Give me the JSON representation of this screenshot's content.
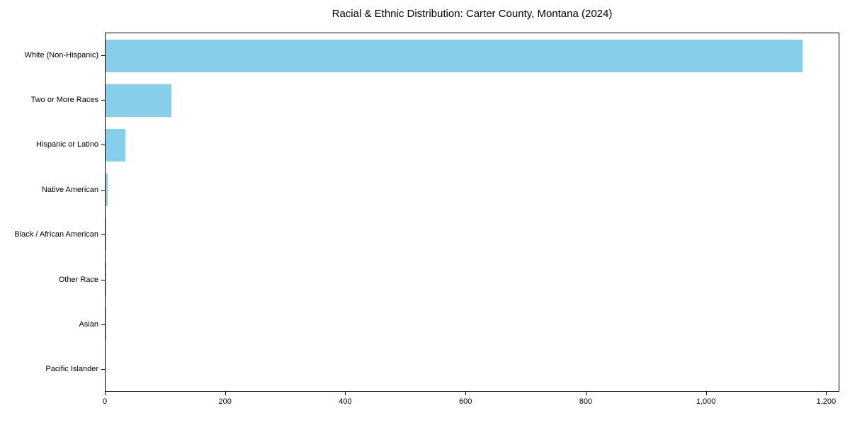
{
  "chart_data": {
    "type": "bar",
    "orientation": "horizontal",
    "title": "Racial & Ethnic Distribution: Carter County, Montana (2024)",
    "categories": [
      "White (Non-Hispanic)",
      "Two or More Races",
      "Hispanic or Latino",
      "Native American",
      "Black / African American",
      "Other Race",
      "Asian",
      "Pacific Islander"
    ],
    "values": [
      1162,
      110,
      33,
      3,
      1,
      1,
      1,
      0
    ],
    "xlabel": "",
    "ylabel": "",
    "xlim": [
      0,
      1222
    ],
    "x_ticks": [
      0,
      200,
      400,
      600,
      800,
      1000,
      1200
    ],
    "x_tick_labels": [
      "0",
      "200",
      "400",
      "600",
      "800",
      "1,000",
      "1,200"
    ],
    "bar_color": "#87CEEB",
    "axis_color": "#000000",
    "text_color": "#000000",
    "background": "#ffffff",
    "grid": false,
    "legend": "none"
  }
}
